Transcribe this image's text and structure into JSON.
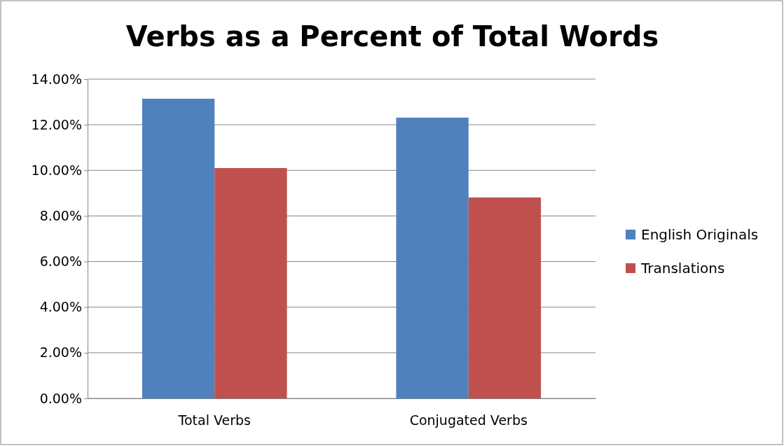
{
  "chart_data": {
    "type": "bar",
    "title": "Verbs as a Percent of Total Words",
    "categories": [
      "Total Verbs",
      "Conjugated Verbs"
    ],
    "series": [
      {
        "name": "English Originals",
        "color": "#4f81bd",
        "values": [
          13.14,
          12.31
        ]
      },
      {
        "name": "Translations",
        "color": "#c0504d",
        "values": [
          10.1,
          8.81
        ]
      }
    ],
    "ylim": [
      0,
      14
    ],
    "yticks": [
      {
        "value": 0,
        "label": "0.00%"
      },
      {
        "value": 2,
        "label": "2.00%"
      },
      {
        "value": 4,
        "label": "4.00%"
      },
      {
        "value": 6,
        "label": "6.00%"
      },
      {
        "value": 8,
        "label": "8.00%"
      },
      {
        "value": 10,
        "label": "10.00%"
      },
      {
        "value": 12,
        "label": "12.00%"
      },
      {
        "value": 14,
        "label": "14.00%"
      }
    ],
    "grid": "y",
    "legend": "right"
  }
}
